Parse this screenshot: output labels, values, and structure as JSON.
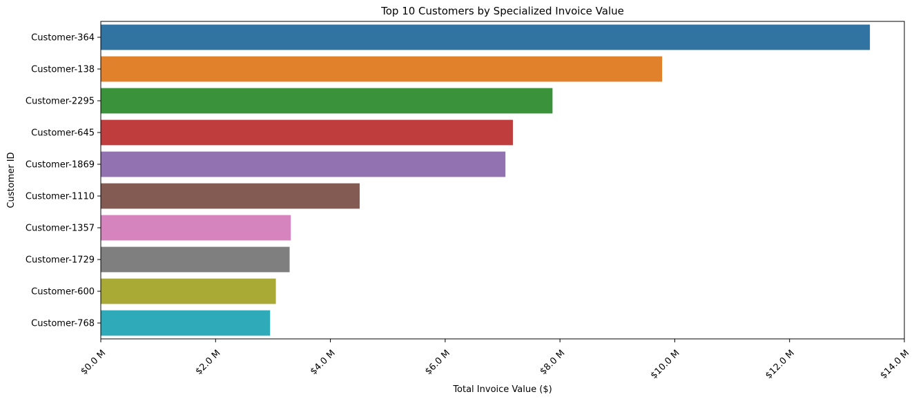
{
  "chart_data": {
    "type": "bar",
    "orientation": "horizontal",
    "title": "Top 10 Customers by Specialized Invoice Value",
    "xlabel": "Total Invoice Value ($)",
    "ylabel": "Customer ID",
    "categories": [
      "Customer-364",
      "Customer-138",
      "Customer-2295",
      "Customer-645",
      "Customer-1869",
      "Customer-1110",
      "Customer-1357",
      "Customer-1729",
      "Customer-600",
      "Customer-768"
    ],
    "values": [
      13.4,
      9.78,
      7.87,
      7.18,
      7.05,
      4.51,
      3.31,
      3.29,
      3.05,
      2.95
    ],
    "value_unit": "$ M",
    "xlim": [
      0,
      14.0
    ],
    "xticks": [
      0,
      2,
      4,
      6,
      8,
      10,
      12,
      14
    ],
    "xtick_labels": [
      "$0.0 M",
      "$2.0 M",
      "$4.0 M",
      "$6.0 M",
      "$8.0 M",
      "$10.0 M",
      "$12.0 M",
      "$14.0 M"
    ],
    "colors": [
      "#3274a1",
      "#e1812c",
      "#3a923a",
      "#c03d3e",
      "#9372b2",
      "#845b53",
      "#d684bd",
      "#7f7f7f",
      "#a9aa35",
      "#2eaab8"
    ],
    "grid": false,
    "legend": "none"
  }
}
